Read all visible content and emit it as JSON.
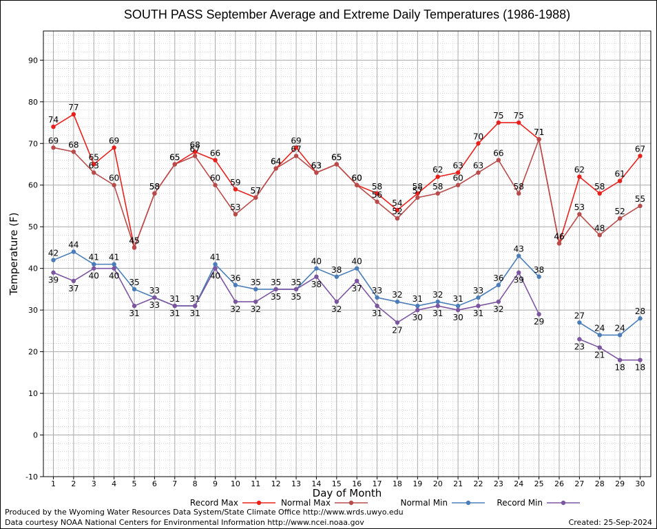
{
  "chart_data": {
    "type": "line",
    "title": "SOUTH PASS September Average and Extreme Daily Temperatures (1986-1988)",
    "xlabel": "Day of Month",
    "ylabel": "Temperature (F)",
    "ylim": [
      -10,
      97
    ],
    "yticks": [
      -10,
      0,
      10,
      20,
      30,
      40,
      50,
      60,
      70,
      80,
      90
    ],
    "x": [
      1,
      2,
      3,
      4,
      5,
      6,
      7,
      8,
      9,
      10,
      11,
      12,
      13,
      14,
      15,
      16,
      17,
      18,
      19,
      20,
      21,
      22,
      23,
      24,
      25,
      26,
      27,
      28,
      29,
      30
    ],
    "grid": true,
    "legend_position": "bottom",
    "series": [
      {
        "name": "Record Max",
        "color": "#e8201c",
        "label_side": "above",
        "values": [
          74,
          77,
          65,
          69,
          45,
          58,
          65,
          68,
          66,
          59,
          57,
          64,
          69,
          63,
          65,
          60,
          58,
          54,
          58,
          62,
          63,
          70,
          75,
          75,
          71,
          46,
          62,
          58,
          61,
          67
        ]
      },
      {
        "name": "Normal Max",
        "color": "#b84a4a",
        "label_side": "above",
        "values": [
          69,
          68,
          63,
          60,
          45,
          58,
          65,
          67,
          60,
          53,
          57,
          64,
          67,
          63,
          65,
          60,
          56,
          52,
          57,
          58,
          60,
          63,
          66,
          58,
          71,
          46,
          53,
          48,
          52,
          55
        ]
      },
      {
        "name": "Normal Min",
        "color": "#4a7db8",
        "label_side": "above",
        "values": [
          42,
          44,
          41,
          41,
          35,
          33,
          31,
          31,
          41,
          36,
          35,
          35,
          35,
          40,
          38,
          40,
          33,
          32,
          31,
          32,
          31,
          33,
          36,
          43,
          38,
          null,
          27,
          24,
          24,
          28
        ]
      },
      {
        "name": "Record Min",
        "color": "#7b55a0",
        "label_side": "below",
        "values": [
          39,
          37,
          40,
          40,
          31,
          33,
          31,
          31,
          40,
          32,
          32,
          35,
          35,
          38,
          32,
          37,
          31,
          27,
          30,
          31,
          30,
          31,
          32,
          39,
          29,
          null,
          23,
          21,
          18,
          18
        ]
      }
    ]
  },
  "footer": {
    "line1": "Produced by the Wyoming Water Resources Data System/State Climate Office http://www.wrds.uwyo.edu",
    "line2": "Data courtesy NOAA National Centers for Environmental Information http://www.ncei.noaa.gov",
    "created": "Created:  25-Sep-2024"
  }
}
